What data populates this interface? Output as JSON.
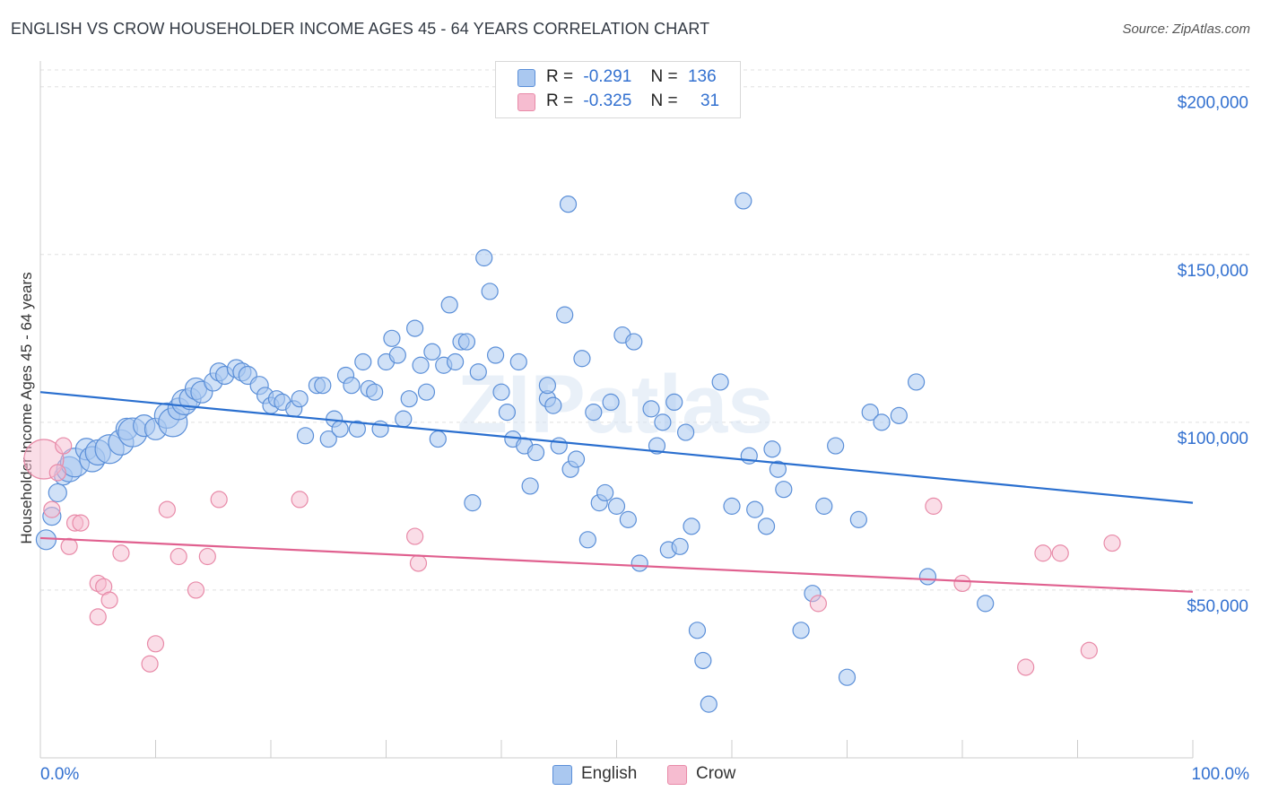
{
  "header": {
    "title": "ENGLISH VS CROW HOUSEHOLDER INCOME AGES 45 - 64 YEARS CORRELATION CHART",
    "source": "Source: ZipAtlas.com"
  },
  "legend": {
    "rows": [
      {
        "r_label": "R =",
        "r_value": "-0.291",
        "n_label": "N =",
        "n_value": "136"
      },
      {
        "r_label": "R =",
        "r_value": "-0.325",
        "n_label": "N =",
        "n_value": "31"
      }
    ]
  },
  "bottom_legend": [
    "English",
    "Crow"
  ],
  "watermark": "ZIPatlas",
  "colors": {
    "english_fill": "#aac8f0",
    "english_stroke": "#5b8fd8",
    "english_line": "#2a6fcf",
    "crow_fill": "#f6bcd0",
    "crow_stroke": "#e88aa8",
    "crow_line": "#e0608f",
    "axis_text": "#3371d0",
    "grid": "#e0e0e0"
  },
  "chart_data": {
    "type": "scatter",
    "title": "ENGLISH VS CROW HOUSEHOLDER INCOME AGES 45 - 64 YEARS CORRELATION CHART",
    "xlabel": "",
    "ylabel": "Householder Income Ages 45 - 64 years",
    "xlim": [
      0,
      100
    ],
    "ylim": [
      0,
      205000
    ],
    "x_tick_labels": [
      "0.0%",
      "100.0%"
    ],
    "y_tick_labels": [
      "$50,000",
      "$100,000",
      "$150,000",
      "$200,000"
    ],
    "y_tick_values": [
      50000,
      100000,
      150000,
      200000
    ],
    "grid": true,
    "series": [
      {
        "name": "English",
        "r": -0.291,
        "n": 136,
        "trend": [
          [
            0,
            109000
          ],
          [
            100,
            76000
          ]
        ],
        "points": [
          [
            0.5,
            65000,
            11
          ],
          [
            1,
            72000,
            10
          ],
          [
            1.5,
            79000,
            10
          ],
          [
            2,
            84000,
            10
          ],
          [
            2.5,
            86000,
            14
          ],
          [
            3,
            88000,
            16
          ],
          [
            4,
            92000,
            12
          ],
          [
            4.5,
            89000,
            14
          ],
          [
            5,
            91000,
            14
          ],
          [
            6,
            92000,
            16
          ],
          [
            7,
            94000,
            14
          ],
          [
            7.5,
            98000,
            12
          ],
          [
            8,
            97000,
            16
          ],
          [
            9,
            99000,
            12
          ],
          [
            10,
            98000,
            12
          ],
          [
            11,
            102000,
            14
          ],
          [
            11.5,
            100000,
            16
          ],
          [
            12,
            104000,
            12
          ],
          [
            12.5,
            106000,
            14
          ],
          [
            13,
            107000,
            12
          ],
          [
            13.5,
            110000,
            12
          ],
          [
            14,
            109000,
            12
          ],
          [
            15,
            112000,
            10
          ],
          [
            15.5,
            115000,
            10
          ],
          [
            16,
            114000,
            10
          ],
          [
            17,
            116000,
            10
          ],
          [
            17.5,
            115000,
            10
          ],
          [
            18,
            114000,
            10
          ],
          [
            19,
            111000,
            10
          ],
          [
            19.5,
            108000,
            9
          ],
          [
            20,
            105000,
            9
          ],
          [
            20.5,
            107000,
            9
          ],
          [
            21,
            106000,
            9
          ],
          [
            22,
            104000,
            9
          ],
          [
            22.5,
            107000,
            9
          ],
          [
            23,
            96000,
            9
          ],
          [
            24,
            111000,
            9
          ],
          [
            24.5,
            111000,
            9
          ],
          [
            25,
            95000,
            9
          ],
          [
            25.5,
            101000,
            9
          ],
          [
            26,
            98000,
            9
          ],
          [
            26.5,
            114000,
            9
          ],
          [
            27,
            111000,
            9
          ],
          [
            27.5,
            98000,
            9
          ],
          [
            28,
            118000,
            9
          ],
          [
            28.5,
            110000,
            9
          ],
          [
            29,
            109000,
            9
          ],
          [
            29.5,
            98000,
            9
          ],
          [
            30,
            118000,
            9
          ],
          [
            30.5,
            125000,
            9
          ],
          [
            31,
            120000,
            9
          ],
          [
            31.5,
            101000,
            9
          ],
          [
            32,
            107000,
            9
          ],
          [
            32.5,
            128000,
            9
          ],
          [
            33,
            117000,
            9
          ],
          [
            33.5,
            109000,
            9
          ],
          [
            34,
            121000,
            9
          ],
          [
            34.5,
            95000,
            9
          ],
          [
            35,
            117000,
            9
          ],
          [
            35.5,
            135000,
            9
          ],
          [
            36,
            118000,
            9
          ],
          [
            36.5,
            124000,
            9
          ],
          [
            37,
            124000,
            9
          ],
          [
            37.5,
            76000,
            9
          ],
          [
            38,
            115000,
            9
          ],
          [
            38.5,
            149000,
            9
          ],
          [
            39,
            139000,
            9
          ],
          [
            39.5,
            120000,
            9
          ],
          [
            40,
            109000,
            9
          ],
          [
            40.5,
            103000,
            9
          ],
          [
            41,
            95000,
            9
          ],
          [
            41.5,
            118000,
            9
          ],
          [
            42,
            93000,
            9
          ],
          [
            42.5,
            81000,
            9
          ],
          [
            43,
            91000,
            9
          ],
          [
            44,
            107000,
            9
          ],
          [
            44.5,
            105000,
            9
          ],
          [
            44,
            111000,
            9
          ],
          [
            45,
            93000,
            9
          ],
          [
            45.5,
            132000,
            9
          ],
          [
            45.8,
            165000,
            9
          ],
          [
            46,
            86000,
            9
          ],
          [
            46.5,
            89000,
            9
          ],
          [
            47,
            119000,
            9
          ],
          [
            47.5,
            65000,
            9
          ],
          [
            48,
            103000,
            9
          ],
          [
            48.5,
            76000,
            9
          ],
          [
            49,
            79000,
            9
          ],
          [
            49.5,
            106000,
            9
          ],
          [
            50,
            75000,
            9
          ],
          [
            50.5,
            126000,
            9
          ],
          [
            51,
            71000,
            9
          ],
          [
            51.5,
            124000,
            9
          ],
          [
            52,
            58000,
            9
          ],
          [
            53,
            104000,
            9
          ],
          [
            53.5,
            93000,
            9
          ],
          [
            54,
            100000,
            9
          ],
          [
            54.5,
            62000,
            9
          ],
          [
            55,
            106000,
            9
          ],
          [
            55.5,
            63000,
            9
          ],
          [
            56,
            97000,
            9
          ],
          [
            56.5,
            69000,
            9
          ],
          [
            57,
            38000,
            9
          ],
          [
            57.5,
            29000,
            9
          ],
          [
            58,
            16000,
            9
          ],
          [
            59,
            112000,
            9
          ],
          [
            60,
            75000,
            9
          ],
          [
            61,
            166000,
            9
          ],
          [
            61.5,
            90000,
            9
          ],
          [
            62,
            74000,
            9
          ],
          [
            63,
            69000,
            9
          ],
          [
            63.5,
            92000,
            9
          ],
          [
            64,
            86000,
            9
          ],
          [
            64.5,
            80000,
            9
          ],
          [
            66,
            38000,
            9
          ],
          [
            67,
            49000,
            9
          ],
          [
            68,
            75000,
            9
          ],
          [
            69,
            93000,
            9
          ],
          [
            70,
            24000,
            9
          ],
          [
            71,
            71000,
            9
          ],
          [
            72,
            103000,
            9
          ],
          [
            73,
            100000,
            9
          ],
          [
            74.5,
            102000,
            9
          ],
          [
            76,
            112000,
            9
          ],
          [
            77,
            54000,
            9
          ],
          [
            82,
            46000,
            9
          ]
        ]
      },
      {
        "name": "Crow",
        "r": -0.325,
        "n": 31,
        "trend": [
          [
            0,
            65500
          ],
          [
            100,
            49500
          ]
        ],
        "points": [
          [
            0.3,
            89000,
            22
          ],
          [
            1,
            74000,
            9
          ],
          [
            1.5,
            85000,
            9
          ],
          [
            2,
            93000,
            9
          ],
          [
            2.5,
            63000,
            9
          ],
          [
            3,
            70000,
            9
          ],
          [
            3.5,
            70000,
            9
          ],
          [
            5,
            52000,
            9
          ],
          [
            5.5,
            51000,
            9
          ],
          [
            6,
            47000,
            9
          ],
          [
            7,
            61000,
            9
          ],
          [
            5,
            42000,
            9
          ],
          [
            9.5,
            28000,
            9
          ],
          [
            10,
            34000,
            9
          ],
          [
            11,
            74000,
            9
          ],
          [
            12,
            60000,
            9
          ],
          [
            13.5,
            50000,
            9
          ],
          [
            14.5,
            60000,
            9
          ],
          [
            15.5,
            77000,
            9
          ],
          [
            22.5,
            77000,
            9
          ],
          [
            32.5,
            66000,
            9
          ],
          [
            32.8,
            58000,
            9
          ],
          [
            67.5,
            46000,
            9
          ],
          [
            77.5,
            75000,
            9
          ],
          [
            80,
            52000,
            9
          ],
          [
            85.5,
            27000,
            9
          ],
          [
            87,
            61000,
            9
          ],
          [
            88.5,
            61000,
            9
          ],
          [
            91,
            32000,
            9
          ],
          [
            93,
            64000,
            9
          ]
        ]
      }
    ]
  }
}
